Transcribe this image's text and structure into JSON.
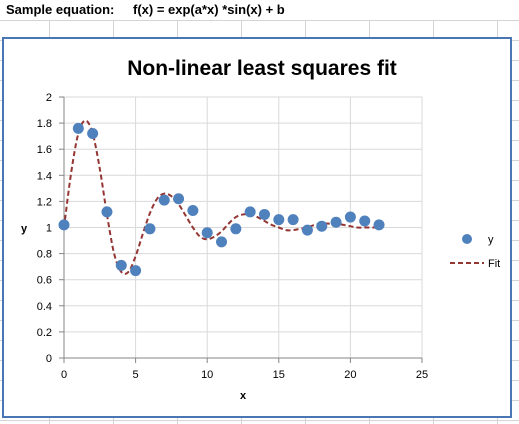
{
  "sheet": {
    "equation_label": "Sample equation:",
    "equation_text": "f(x) = exp(a*x) *sin(x) + b"
  },
  "chart_data": {
    "type": "scatter",
    "title": "Non-linear least squares fit",
    "xlabel": "x",
    "ylabel": "y",
    "xlim": [
      0,
      25
    ],
    "ylim": [
      0,
      2
    ],
    "x_ticks": [
      0,
      5,
      10,
      15,
      20,
      25
    ],
    "y_ticks": [
      0,
      0.2,
      0.4,
      0.6,
      0.8,
      1,
      1.2,
      1.4,
      1.6,
      1.8,
      2
    ],
    "grid": true,
    "legend_position": "right",
    "colors": {
      "points": "#4f81bd",
      "fit": "#943634"
    },
    "series": [
      {
        "name": "y",
        "style": "markers",
        "x": [
          0,
          1,
          2,
          3,
          4,
          5,
          6,
          7,
          8,
          9,
          10,
          11,
          12,
          13,
          14,
          15,
          16,
          17,
          18,
          19,
          20,
          21,
          22
        ],
        "y": [
          1.02,
          1.76,
          1.72,
          1.12,
          0.71,
          0.67,
          0.99,
          1.21,
          1.22,
          1.13,
          0.96,
          0.89,
          0.99,
          1.12,
          1.1,
          1.06,
          1.06,
          0.98,
          1.01,
          1.04,
          1.08,
          1.05,
          1.02
        ]
      },
      {
        "name": "Fit",
        "style": "dashed-line",
        "x": [
          0,
          0.5,
          1,
          1.5,
          2,
          2.5,
          3,
          3.5,
          4,
          4.5,
          5,
          5.5,
          6,
          6.5,
          7,
          7.5,
          8,
          8.5,
          9,
          9.5,
          10,
          10.5,
          11,
          11.5,
          12,
          12.5,
          13,
          13.5,
          14,
          14.5,
          15,
          15.5,
          16,
          16.5,
          17,
          17.5,
          18,
          18.5,
          19,
          19.5,
          20,
          20.5,
          21,
          21.5,
          22
        ],
        "y": [
          1.0,
          1.42,
          1.72,
          1.82,
          1.72,
          1.45,
          1.1,
          0.8,
          0.66,
          0.66,
          0.78,
          0.95,
          1.11,
          1.22,
          1.26,
          1.24,
          1.18,
          1.09,
          1.0,
          0.93,
          0.91,
          0.93,
          0.97,
          1.03,
          1.08,
          1.1,
          1.1,
          1.08,
          1.05,
          1.02,
          1.0,
          0.98,
          0.98,
          0.99,
          1.0,
          1.02,
          1.03,
          1.03,
          1.03,
          1.02,
          1.01,
          1.0,
          1.0,
          1.0,
          1.0
        ]
      }
    ]
  }
}
